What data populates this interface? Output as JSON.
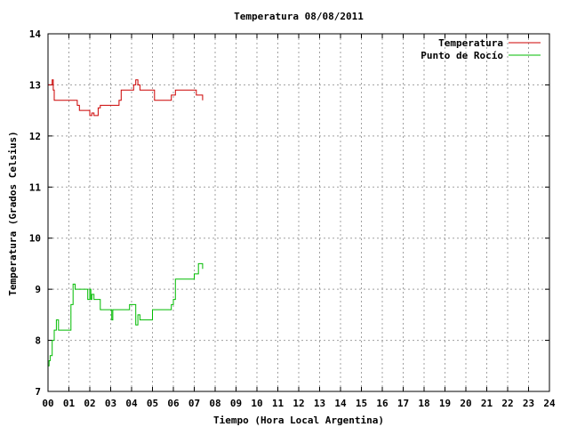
{
  "chart_data": {
    "type": "line",
    "title": "Temperatura 08/08/2011",
    "xlabel": "Tiempo (Hora Local Argentina)",
    "ylabel": "Temperatura (Grados Celsius)",
    "xlim": [
      0,
      24
    ],
    "ylim": [
      7,
      14
    ],
    "x_ticks": [
      "00",
      "01",
      "02",
      "03",
      "04",
      "05",
      "06",
      "07",
      "08",
      "09",
      "10",
      "11",
      "12",
      "13",
      "14",
      "15",
      "16",
      "17",
      "18",
      "19",
      "20",
      "21",
      "22",
      "23",
      "24"
    ],
    "y_ticks": [
      7,
      8,
      9,
      10,
      11,
      12,
      13,
      14
    ],
    "grid": true,
    "legend_position": "top-right",
    "series": [
      {
        "name": "Temperatura",
        "color": "#cc0000",
        "x": [
          0.0,
          0.1,
          0.2,
          0.25,
          0.3,
          1.3,
          1.4,
          1.5,
          1.9,
          2.0,
          2.1,
          2.2,
          2.4,
          2.5,
          3.3,
          3.4,
          3.5,
          4.1,
          4.2,
          4.3,
          4.4,
          5.0,
          5.1,
          5.5,
          5.9,
          6.0,
          6.1,
          6.3,
          7.0,
          7.1,
          7.3,
          7.4
        ],
        "values": [
          13.0,
          13.0,
          13.1,
          12.9,
          12.7,
          12.7,
          12.6,
          12.5,
          12.5,
          12.4,
          12.45,
          12.4,
          12.55,
          12.6,
          12.6,
          12.7,
          12.9,
          13.0,
          13.1,
          13.0,
          12.9,
          12.9,
          12.7,
          12.7,
          12.8,
          12.8,
          12.9,
          12.9,
          12.9,
          12.8,
          12.8,
          12.7
        ]
      },
      {
        "name": "Punto de Rocío",
        "color": "#00bb00",
        "x": [
          0.0,
          0.05,
          0.1,
          0.2,
          0.3,
          0.4,
          0.5,
          1.0,
          1.1,
          1.2,
          1.3,
          1.5,
          1.9,
          2.0,
          2.05,
          2.1,
          2.2,
          2.3,
          2.5,
          2.6,
          3.0,
          3.05,
          3.1,
          3.5,
          3.9,
          4.1,
          4.2,
          4.3,
          4.4,
          4.5,
          4.9,
          5.0,
          5.1,
          5.5,
          5.9,
          6.0,
          6.1,
          6.3,
          7.0,
          7.1,
          7.2,
          7.3,
          7.4
        ],
        "values": [
          7.5,
          7.6,
          7.7,
          8.0,
          8.2,
          8.4,
          8.2,
          8.2,
          8.7,
          9.1,
          9.0,
          9.0,
          8.8,
          9.0,
          8.8,
          8.9,
          8.8,
          8.8,
          8.6,
          8.6,
          8.6,
          8.4,
          8.6,
          8.6,
          8.7,
          8.7,
          8.3,
          8.5,
          8.4,
          8.4,
          8.4,
          8.6,
          8.6,
          8.6,
          8.7,
          8.8,
          9.2,
          9.2,
          9.3,
          9.3,
          9.5,
          9.5,
          9.4
        ]
      }
    ]
  }
}
